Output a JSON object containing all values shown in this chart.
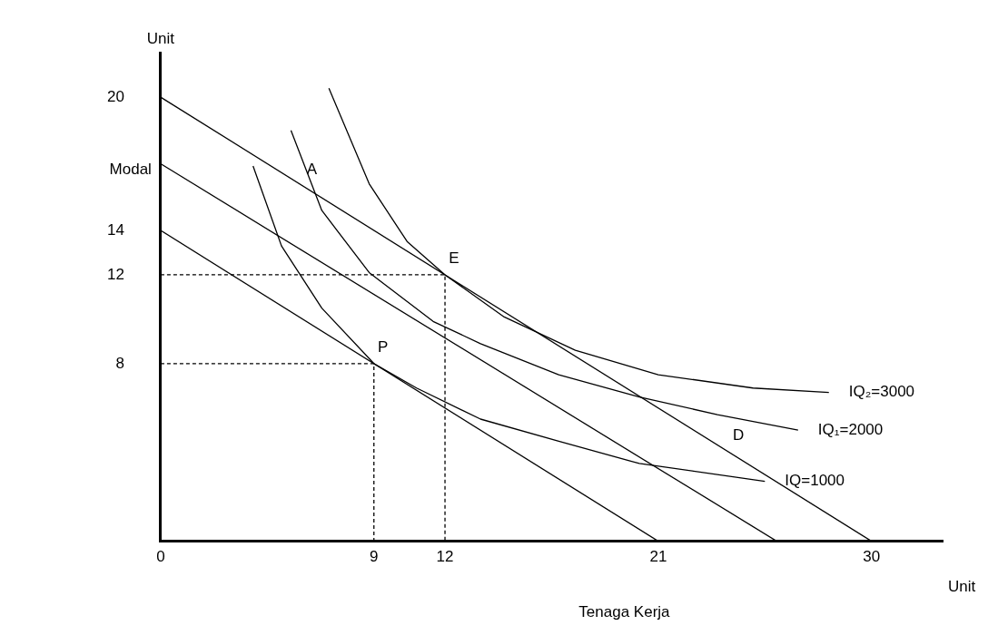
{
  "chart_data": {
    "type": "line",
    "xlabel": "Tenaga Kerja",
    "ylabel": "Modal",
    "xlim": [
      0,
      33
    ],
    "ylim": [
      0,
      22
    ],
    "xticks": [
      0,
      9,
      12,
      21,
      30
    ],
    "yticks": [
      8,
      12,
      14,
      20
    ],
    "grid": false,
    "legend": false,
    "marker": "none",
    "annotations": [
      "Unit",
      "Unit",
      {
        "text": "A",
        "x": 6,
        "y": 16
      },
      {
        "text": "E",
        "x": 12,
        "y": 12
      },
      {
        "text": "P",
        "x": 9,
        "y": 8
      },
      {
        "text": "D",
        "x": 24,
        "y": 4
      }
    ],
    "series": [
      {
        "x": [
          0,
          30
        ],
        "values": [
          20,
          0
        ],
        "color": "#000000",
        "line_style": "solid"
      },
      {
        "x": [
          0,
          26
        ],
        "values": [
          17,
          0
        ],
        "color": "#000000",
        "line_style": "solid"
      },
      {
        "x": [
          0,
          21
        ],
        "values": [
          14,
          0
        ],
        "color": "#000000",
        "line_style": "solid"
      },
      {
        "name": "IQ₂=3000",
        "x": [
          7.1,
          8.8,
          10.4,
          12,
          14.5,
          17.5,
          21,
          25,
          28.2
        ],
        "values": [
          20.4,
          16.1,
          13.5,
          12,
          10.1,
          8.6,
          7.5,
          6.9,
          6.7
        ],
        "color": "#000000",
        "line_style": "solid"
      },
      {
        "name": "IQ₁=2000",
        "x": [
          5.5,
          6.8,
          8.8,
          11.5,
          13.5,
          16.8,
          20.2,
          23.5,
          26.9
        ],
        "values": [
          18.5,
          14.9,
          12.1,
          9.9,
          8.9,
          7.5,
          6.5,
          5.7,
          5.0
        ],
        "color": "#000000",
        "line_style": "solid"
      },
      {
        "name": "IQ=1000",
        "x": [
          3.9,
          5.1,
          6.8,
          9,
          10.8,
          13.5,
          16.8,
          20.2,
          25.5
        ],
        "values": [
          16.9,
          13.3,
          10.5,
          8,
          6.9,
          5.5,
          4.5,
          3.5,
          2.7
        ],
        "color": "#000000",
        "line_style": "solid"
      },
      {
        "x": [
          0,
          12,
          12
        ],
        "values": [
          12,
          12,
          0
        ],
        "color": "#000000",
        "line_style": "dashed"
      },
      {
        "x": [
          0,
          9,
          9
        ],
        "values": [
          8,
          8,
          0
        ],
        "color": "#000000",
        "line_style": "dashed"
      }
    ]
  }
}
